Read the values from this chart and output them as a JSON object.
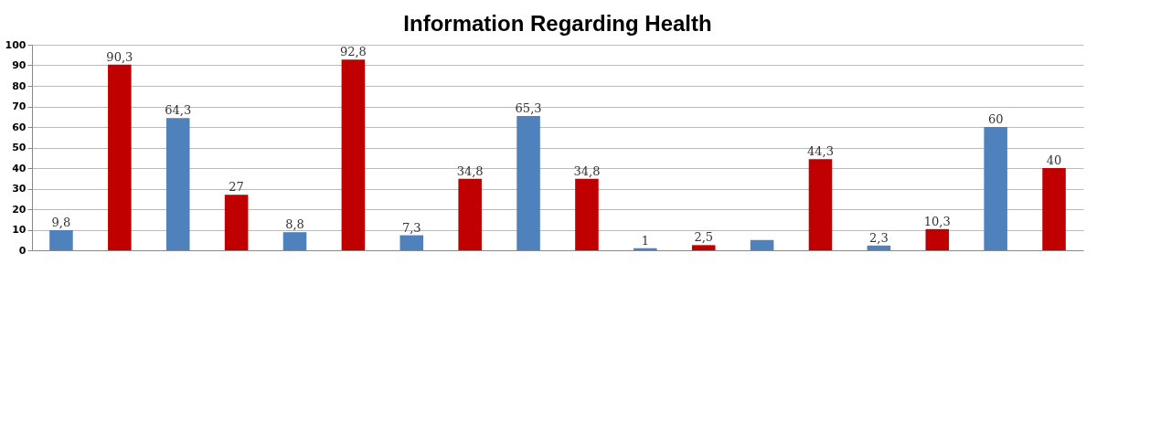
{
  "chart_data": {
    "type": "bar",
    "title": "Information Regarding Health",
    "categories": [
      null,
      null,
      null,
      null,
      null,
      null,
      null,
      null,
      null,
      null,
      null,
      null,
      null,
      null,
      null,
      null,
      null,
      null
    ],
    "values": [
      9.8,
      90.3,
      64.3,
      27,
      8.8,
      92.8,
      7.3,
      34.8,
      65.3,
      34.8,
      1,
      2.5,
      5,
      44.3,
      2.3,
      10.3,
      60,
      40
    ],
    "value_labels": [
      "9,8",
      "90,3",
      "64,3",
      "27",
      "8,8",
      "92,8",
      "7,3",
      "34,8",
      "65,3",
      "34,8",
      "1",
      "2,5",
      null,
      "44,3",
      "2,3",
      "10,3",
      "60",
      "40"
    ],
    "colors": [
      "#4f81bd",
      "#c00000",
      "#4f81bd",
      "#c00000",
      "#4f81bd",
      "#c00000",
      "#4f81bd",
      "#c00000",
      "#4f81bd",
      "#c00000",
      "#4f81bd",
      "#c00000",
      "#4f81bd",
      "#c00000",
      "#4f81bd",
      "#c00000",
      "#4f81bd",
      "#c00000"
    ],
    "ylim": [
      0,
      100
    ],
    "yticks": [
      0,
      10,
      20,
      30,
      40,
      50,
      60,
      70,
      80,
      90,
      100
    ],
    "grid": "y"
  }
}
